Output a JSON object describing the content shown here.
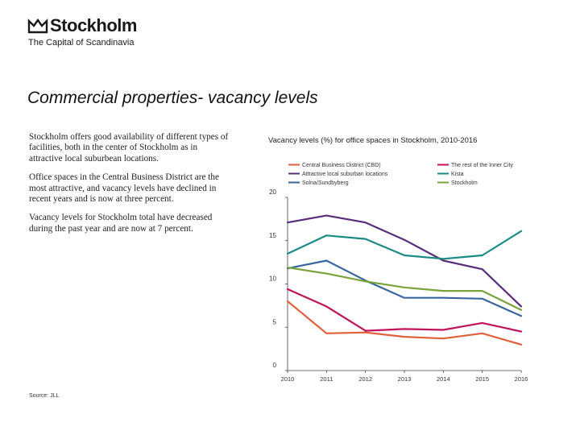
{
  "header": {
    "brand": "Stockholm",
    "tagline": "The Capital of Scandinavia"
  },
  "slide": {
    "title": "Commercial properties- vacancy levels",
    "paragraphs": [
      "Stockholm offers good availability of different types of facilities, both in the center of Stockholm as in attractive local suburbean locations.",
      "Office spaces in the Central Business District are the most attractive, and vacancy levels have declined in recent years and is now at three percent.",
      "Vacancy levels for Stockholm total have decreased during the past year and are now at 7 percent."
    ],
    "source": "Source: JLL"
  },
  "chart_data": {
    "type": "line",
    "title": "Vacancy levels (%) for office spaces in Stockholm, 2010-2016",
    "xlabel": "",
    "ylabel": "",
    "x": [
      "2010",
      "2011",
      "2012",
      "2013",
      "2014",
      "2015",
      "2016"
    ],
    "ylim": [
      0,
      20
    ],
    "yticks": [
      0,
      5,
      10,
      15,
      20
    ],
    "grid": false,
    "legend": "top",
    "series": [
      {
        "name": "Central Business District (CBD)",
        "color": "#e0603a",
        "values": [
          8.0,
          4.3,
          4.4,
          3.9,
          3.7,
          4.3,
          3.0
        ]
      },
      {
        "name": "The rest of the Inner City",
        "color": "#c0135a",
        "values": [
          9.4,
          7.4,
          4.6,
          4.8,
          4.7,
          5.5,
          4.5
        ]
      },
      {
        "name": "Attractive local suburban locations",
        "color": "#5a2d7a",
        "values": [
          17.1,
          17.9,
          17.1,
          15.1,
          12.7,
          11.7,
          7.4
        ]
      },
      {
        "name": "Kista",
        "color": "#1a8a86",
        "values": [
          13.5,
          15.6,
          15.2,
          13.3,
          12.9,
          13.3,
          16.1
        ]
      },
      {
        "name": "Solna/Sundbyberg",
        "color": "#3a66a0",
        "values": [
          11.8,
          12.7,
          10.4,
          8.4,
          8.4,
          8.3,
          6.3
        ]
      },
      {
        "name": "Stockholm",
        "color": "#7aa33a",
        "values": [
          11.9,
          11.2,
          10.3,
          9.6,
          9.2,
          9.2,
          7.0
        ]
      }
    ]
  }
}
